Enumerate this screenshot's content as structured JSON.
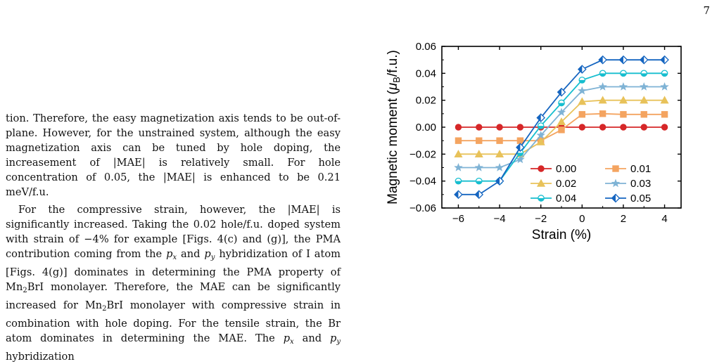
{
  "page": {
    "number": "7"
  },
  "paragraphs": [
    "tion. Therefore, the easy magnetization axis tends to be out-of-plane. However, for the unstrained system, although the easy magnetization axis can be tuned by hole doping, the increasement of |MAE| is relatively small. For hole concentration of 0.05, the |MAE| is enhanced to be 0.21 meV/f.u.",
    "For the compressive strain, however, the |MAE| is significantly increased. Taking the 0.02 hole/f.u. doped system with strain of −4% for example [Figs. 4(c) and (g)], the PMA contribution coming from the p_x and p_y hybridization of I atom [Figs. 4(g)] dominates in determining the PMA property of Mn_2BrI monolayer. Therefore, the MAE can be significantly increased for Mn_2BrI monolayer with compressive strain in combination with hole doping. For the tensile strain, the Br atom dominates in determining the MAE. The p_x and p_y hybridization"
  ],
  "chart_data": {
    "type": "line",
    "xlabel": "Strain (%)",
    "ylabel": "Magnetic moment (μB/f.u.)",
    "xlim": [
      -6.8,
      4.8
    ],
    "ylim": [
      -0.06,
      0.06
    ],
    "xticks": [
      -6,
      -4,
      -2,
      0,
      2,
      4
    ],
    "yticks": [
      -0.06,
      -0.04,
      -0.02,
      0.0,
      0.02,
      0.04,
      0.06
    ],
    "xtick_labels": [
      "−6",
      "−4",
      "−2",
      "0",
      "2",
      "4"
    ],
    "ytick_labels": [
      "−0.06",
      "−0.04",
      "−0.02",
      "0.00",
      "0.02",
      "0.04",
      "0.06"
    ],
    "legend_position": "lower-right",
    "x": [
      -6,
      -5,
      -4,
      -3,
      -2,
      -1,
      0,
      1,
      2,
      3,
      4
    ],
    "series": [
      {
        "name": "0.00",
        "color": "#d62728",
        "marker": "circle",
        "values": [
          0,
          0,
          0,
          0,
          0,
          0,
          0,
          0,
          0,
          0,
          0
        ]
      },
      {
        "name": "0.01",
        "color": "#f4a460",
        "marker": "square",
        "values": [
          -0.01,
          -0.01,
          -0.01,
          -0.01,
          -0.01,
          -0.002,
          0.0095,
          0.01,
          0.0095,
          0.0095,
          0.0095
        ]
      },
      {
        "name": "0.02",
        "color": "#e8c25a",
        "marker": "triangle",
        "values": [
          -0.02,
          -0.02,
          -0.02,
          -0.02,
          -0.011,
          0.004,
          0.019,
          0.02,
          0.02,
          0.02,
          0.02
        ]
      },
      {
        "name": "0.03",
        "color": "#7fb3d5",
        "marker": "star",
        "values": [
          -0.03,
          -0.03,
          -0.03,
          -0.024,
          -0.006,
          0.011,
          0.027,
          0.03,
          0.03,
          0.03,
          0.03
        ]
      },
      {
        "name": "0.04",
        "color": "#17becf",
        "marker": "circle-half",
        "values": [
          -0.04,
          -0.04,
          -0.04,
          -0.019,
          0.001,
          0.018,
          0.035,
          0.04,
          0.04,
          0.04,
          0.04
        ]
      },
      {
        "name": "0.05",
        "color": "#1565c0",
        "marker": "diamond-half",
        "values": [
          -0.05,
          -0.05,
          -0.04,
          -0.015,
          0.007,
          0.026,
          0.043,
          0.05,
          0.05,
          0.05,
          0.05
        ]
      }
    ]
  }
}
